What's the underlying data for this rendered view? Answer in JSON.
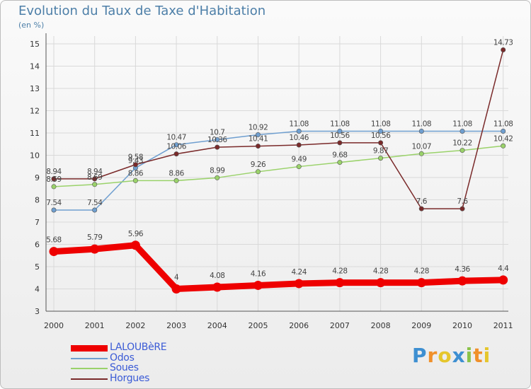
{
  "header": {
    "title": "Evolution du Taux de Taxe d'Habitation",
    "unit": "(en %)"
  },
  "logo": {
    "text": "Proxiti"
  },
  "chart_data": {
    "type": "line",
    "title": "Evolution du Taux de Taxe d'Habitation",
    "ylabel": "(en %)",
    "xlabel": "",
    "x": [
      "2000",
      "2001",
      "2002",
      "2003",
      "2004",
      "2005",
      "2006",
      "2007",
      "2008",
      "2009",
      "2010",
      "2011"
    ],
    "ylim": [
      3,
      15
    ],
    "yticks": [
      3,
      4,
      5,
      6,
      7,
      8,
      9,
      10,
      11,
      12,
      13,
      14,
      15
    ],
    "grid": true,
    "legend": "bottom-left",
    "series": [
      {
        "name": "LALOUBèRE",
        "color": "#ee0000",
        "values": [
          5.68,
          5.79,
          5.96,
          4,
          4.08,
          4.16,
          4.24,
          4.28,
          4.28,
          4.28,
          4.36,
          4.4
        ],
        "labels": [
          "5.68",
          "5.79",
          "5.96",
          "4",
          "4.08",
          "4.16",
          "4.24",
          "4.28",
          "4.28",
          "4.28",
          "4.36",
          "4.4"
        ]
      },
      {
        "name": "Odos",
        "color": "#6f9fd0",
        "values": [
          7.54,
          7.54,
          9.43,
          10.47,
          10.7,
          10.92,
          11.08,
          11.08,
          11.08,
          11.08,
          11.08,
          11.08
        ],
        "labels": [
          "7.54",
          "7.54",
          "9.43",
          "10.47",
          "10.7",
          "10.92",
          "11.08",
          "11.08",
          "11.08",
          "11.08",
          "11.08",
          "11.08"
        ]
      },
      {
        "name": "Soues",
        "color": "#9ad26a",
        "values": [
          8.59,
          8.69,
          8.86,
          8.86,
          8.99,
          9.26,
          9.49,
          9.68,
          9.87,
          10.07,
          10.22,
          10.42
        ],
        "labels": [
          "8.59",
          "8.69",
          "8.86",
          "8.86",
          "8.99",
          "9.26",
          "9.49",
          "9.68",
          "9.87",
          "10.07",
          "10.22",
          "10.42"
        ]
      },
      {
        "name": "Horgues",
        "color": "#7a2a2a",
        "values": [
          8.94,
          8.94,
          9.58,
          10.06,
          10.36,
          10.41,
          10.46,
          10.56,
          10.56,
          7.6,
          7.6,
          14.73
        ],
        "labels": [
          "8.94",
          "8.94",
          "9.58",
          "10.06",
          "10.36",
          "10.41",
          "10.46",
          "10.56",
          "10.56",
          "7.6",
          "7.6",
          "14.73"
        ]
      }
    ]
  }
}
